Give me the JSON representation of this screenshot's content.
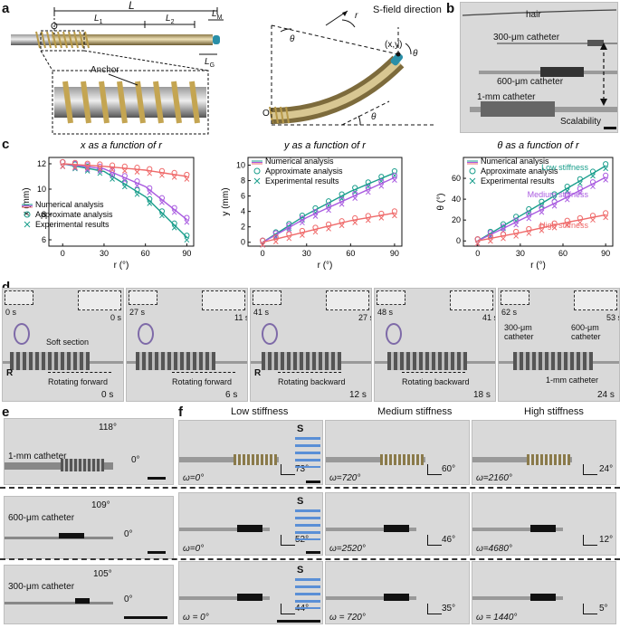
{
  "panel_labels": {
    "a": "a",
    "b": "b",
    "c": "c",
    "d": "d",
    "e": "e",
    "f": "f"
  },
  "a": {
    "L": "L",
    "L1": "L",
    "L1_sub": "1",
    "L2": "L",
    "L2_sub": "2",
    "LM": "L",
    "LM_sub": "M",
    "LG": "L",
    "LG_sub": "G",
    "O": "O",
    "anchor": "Anchor",
    "sfield": "S-field direction",
    "r": "r",
    "theta": "θ",
    "xy": "(x,y)",
    "O2": "O"
  },
  "b": {
    "hair": "hair",
    "c300": "300-μm catheter",
    "c600": "600-μm catheter",
    "c1mm": "1-mm catheter",
    "scal": "Scalability"
  },
  "c": {
    "legend": {
      "num": "Numerical analysis",
      "approx": "Approximate analysis",
      "exp": "Experimental results"
    },
    "stiff": {
      "low": "Low stiffness",
      "med": "Medium stiffness",
      "high": "High stiffness"
    },
    "colors": {
      "low": "#1a9e8c",
      "med": "#a95be0",
      "high": "#ef6a6a"
    }
  },
  "chart_data": [
    {
      "type": "line",
      "title": "x as a function of r",
      "xlabel": "r (°)",
      "ylabel": "x (mm)",
      "xlim": [
        -10,
        95
      ],
      "ylim": [
        5.5,
        12.5
      ],
      "xticks": [
        "0",
        "30",
        "60",
        "90"
      ],
      "yticks": [
        "6",
        "8",
        "10",
        "12"
      ],
      "x": [
        0,
        30,
        60,
        90
      ],
      "series": [
        {
          "name": "low",
          "values": [
            12,
            11.4,
            9.4,
            6.2
          ]
        },
        {
          "name": "medium",
          "values": [
            12,
            11.6,
            10.2,
            7.6
          ]
        },
        {
          "name": "high",
          "values": [
            12,
            11.8,
            11.5,
            11
          ]
        }
      ]
    },
    {
      "type": "line",
      "title": "y as a function of r",
      "xlabel": "r (°)",
      "ylabel": "y (mm)",
      "xlim": [
        -10,
        95
      ],
      "ylim": [
        -0.5,
        11
      ],
      "xticks": [
        "0",
        "30",
        "60",
        "90"
      ],
      "yticks": [
        "0",
        "2",
        "4",
        "6",
        "8",
        "10"
      ],
      "x": [
        0,
        30,
        60,
        90
      ],
      "series": [
        {
          "name": "low",
          "values": [
            0,
            3.6,
            6.6,
            9
          ]
        },
        {
          "name": "medium",
          "values": [
            0,
            3.2,
            5.8,
            8.4
          ]
        },
        {
          "name": "high",
          "values": [
            0,
            1.4,
            2.8,
            3.8
          ]
        }
      ]
    },
    {
      "type": "line",
      "title": "θ as a function of r",
      "xlabel": "r (°)",
      "ylabel": "θ (°)",
      "xlim": [
        -10,
        95
      ],
      "ylim": [
        -5,
        80
      ],
      "xticks": [
        "0",
        "30",
        "60",
        "90"
      ],
      "yticks": [
        "0",
        "20",
        "40",
        "60"
      ],
      "x": [
        0,
        30,
        60,
        90
      ],
      "series": [
        {
          "name": "low",
          "values": [
            0,
            24,
            48,
            72
          ]
        },
        {
          "name": "medium",
          "values": [
            0,
            20,
            40,
            61
          ]
        },
        {
          "name": "high",
          "values": [
            0,
            8,
            17,
            25
          ]
        }
      ]
    }
  ],
  "d": {
    "frames": [
      {
        "t1": "0 s",
        "t2": "0 s",
        "cap": "Rotating forward",
        "time": "0 s",
        "soft": "Soft section",
        "R": "R"
      },
      {
        "t1": "27 s",
        "t2": "11 s",
        "cap": "Rotating forward",
        "time": "6 s"
      },
      {
        "t1": "41 s",
        "t2": "27 s",
        "cap": "Rotating backward",
        "time": "12 s",
        "R": "R"
      },
      {
        "t1": "48 s",
        "t2": "41 s",
        "cap": "Rotating backward",
        "time": "18 s"
      },
      {
        "t1": "62 s",
        "t2": "53 s",
        "c300": "300-μm catheter",
        "c600": "600-μm catheter",
        "c1mm": "1-mm catheter",
        "time": "24 s"
      }
    ]
  },
  "e": {
    "rows": [
      {
        "name": "1-mm catheter",
        "ang": "118°",
        "zero": "0°"
      },
      {
        "name": "600-μm catheter",
        "ang": "109°",
        "zero": "0°"
      },
      {
        "name": "300-μm catheter",
        "ang": "105°",
        "zero": "0°"
      }
    ]
  },
  "f": {
    "headers": [
      "Low stiffness",
      "Medium stiffness",
      "High stiffness"
    ],
    "S": "S",
    "rows": [
      [
        {
          "w": "ω=0°",
          "a": "73°"
        },
        {
          "w": "ω=720°",
          "a": "60°"
        },
        {
          "w": "ω=2160°",
          "a": "24°"
        }
      ],
      [
        {
          "w": "ω=0°",
          "a": "52°"
        },
        {
          "w": "ω=2520°",
          "a": "46°"
        },
        {
          "w": "ω=4680°",
          "a": "12°"
        }
      ],
      [
        {
          "w": "ω = 0°",
          "a": "44°"
        },
        {
          "w": "ω = 720°",
          "a": "35°"
        },
        {
          "w": "ω = 1440°",
          "a": "5°"
        }
      ]
    ]
  }
}
